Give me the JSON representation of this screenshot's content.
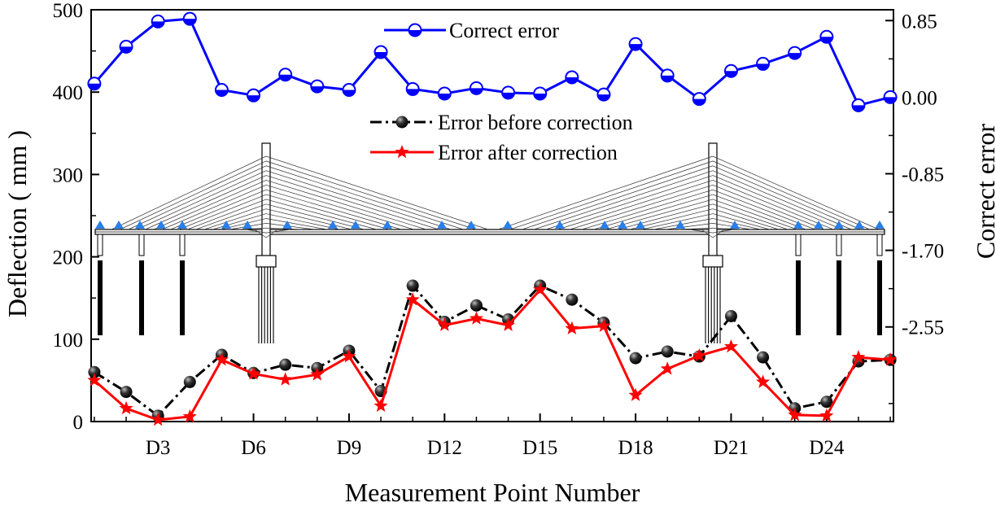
{
  "chart_data": {
    "type": "line",
    "xlabel": "Measurement Point Number",
    "ylabel_left": "Deflection ( mm )",
    "ylabel_right": "Correct error",
    "x": [
      1,
      2,
      3,
      4,
      5,
      6,
      7,
      8,
      9,
      10,
      11,
      12,
      13,
      14,
      15,
      16,
      17,
      18,
      19,
      20,
      21,
      22,
      23,
      24,
      25,
      26
    ],
    "x_tick_positions": [
      3,
      6,
      9,
      12,
      15,
      18,
      21,
      24
    ],
    "x_tick_labels": [
      "D3",
      "D6",
      "D9",
      "D12",
      "D15",
      "D18",
      "D21",
      "D24"
    ],
    "xlim": [
      0.9,
      26.1
    ],
    "ylim_left": [
      0,
      500
    ],
    "ylim_right": [
      -3.6,
      0.97
    ],
    "left_ticks": [
      "0",
      "100",
      "200",
      "300",
      "400",
      "500"
    ],
    "left_tick_values": [
      0,
      100,
      200,
      300,
      400,
      500
    ],
    "right_ticks": [
      "-2.55",
      "-1.70",
      "-0.85",
      "0.00",
      "0.85"
    ],
    "right_tick_values": [
      -2.55,
      -1.7,
      -0.85,
      0.0,
      0.85
    ],
    "series": [
      {
        "name": "Correct error",
        "axis": "right",
        "color": "#0000ff",
        "marker": "half-filled-circle",
        "values": [
          0.15,
          0.56,
          0.84,
          0.87,
          0.08,
          0.02,
          0.25,
          0.12,
          0.08,
          0.5,
          0.09,
          0.04,
          0.1,
          0.05,
          0.04,
          0.22,
          0.03,
          0.59,
          0.24,
          -0.02,
          0.29,
          0.37,
          0.49,
          0.67,
          -0.09,
          0.0
        ]
      },
      {
        "name": "Error before correction",
        "axis": "left",
        "color": "#000000",
        "marker": "sphere",
        "line": "dash-dot",
        "values": [
          60,
          36,
          7,
          48,
          81,
          59,
          69,
          65,
          86,
          37,
          165,
          121,
          141,
          124,
          165,
          148,
          120,
          77,
          85,
          79,
          128,
          78,
          16,
          24,
          73,
          75
        ]
      },
      {
        "name": "Error after correction",
        "axis": "left",
        "color": "#ff0000",
        "marker": "star",
        "values": [
          50,
          16,
          2,
          6,
          75,
          58,
          51,
          57,
          79,
          19,
          148,
          117,
          125,
          117,
          160,
          113,
          116,
          32,
          64,
          80,
          91,
          48,
          8,
          7,
          78,
          75
        ]
      }
    ],
    "legend": "top-center",
    "background_illustration": "cable-stayed bridge with two pylons and blue triangle sensors"
  }
}
